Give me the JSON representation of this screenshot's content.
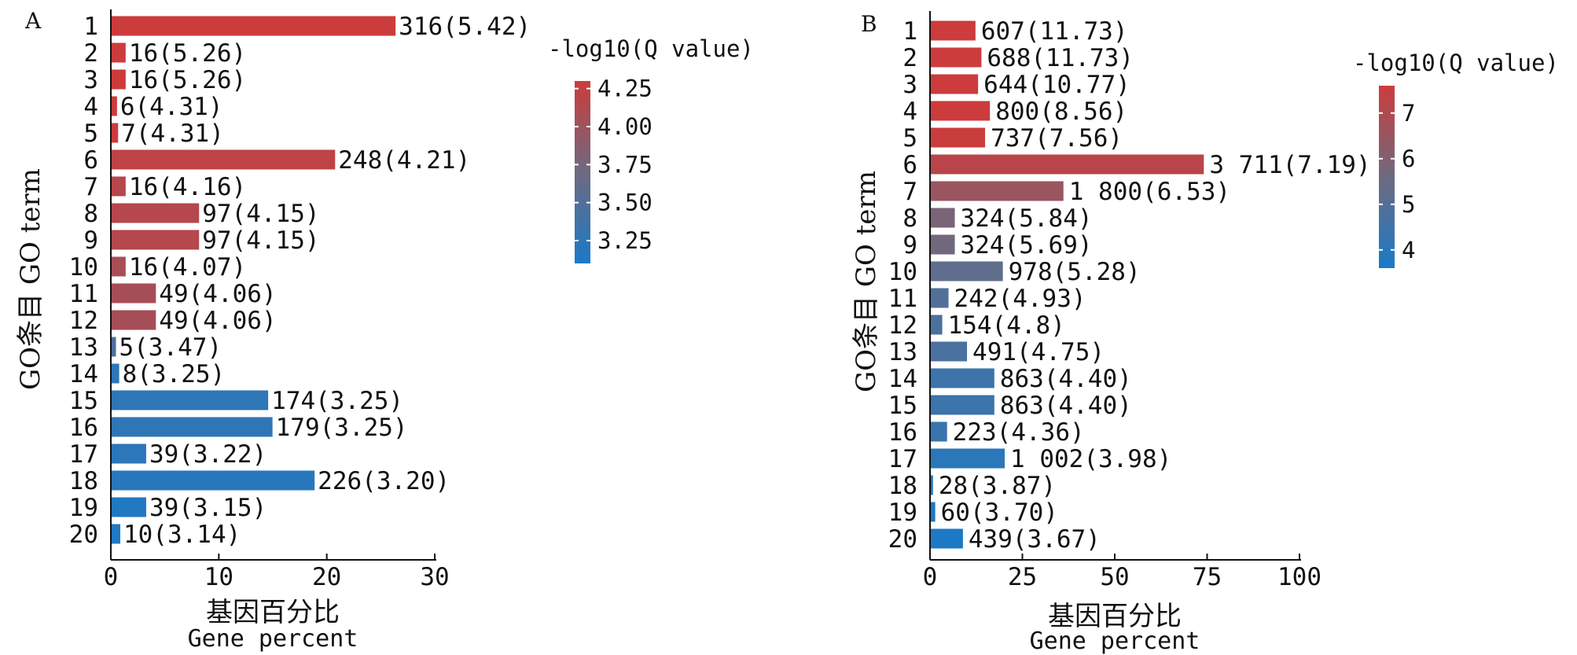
{
  "chart_data": [
    {
      "type": "bar",
      "orientation": "horizontal",
      "panel_label": "A",
      "xlabel": "基因百分比",
      "xlabel_en": "Gene percent",
      "ylabel": "GO条目 GO term",
      "xlim": [
        0,
        30
      ],
      "xticks": [
        0,
        10,
        20,
        30
      ],
      "grid": false,
      "colorbar": {
        "title": "-log10(Q value)",
        "min": 3.1,
        "max": 4.3,
        "ticks": [
          4.25,
          4.0,
          3.75,
          3.5,
          3.25
        ],
        "tick_labels": [
          "4.25",
          "4.00",
          "3.75",
          "3.50",
          "3.25"
        ],
        "low_color": "#1a7ac8",
        "mid_color": "#6e6a80",
        "high_color": "#cc3c3c"
      },
      "categories": [
        "1",
        "2",
        "3",
        "4",
        "5",
        "6",
        "7",
        "8",
        "9",
        "10",
        "11",
        "12",
        "13",
        "14",
        "15",
        "16",
        "17",
        "18",
        "19",
        "20"
      ],
      "values": [
        26.3,
        1.3,
        1.3,
        0.5,
        0.6,
        20.7,
        1.3,
        8.1,
        8.1,
        1.3,
        4.1,
        4.1,
        0.4,
        0.7,
        14.5,
        14.9,
        3.2,
        18.8,
        3.2,
        0.8
      ],
      "q_values": [
        5.42,
        5.26,
        5.26,
        4.31,
        4.31,
        4.21,
        4.16,
        4.15,
        4.15,
        4.07,
        4.06,
        4.06,
        3.47,
        3.25,
        3.25,
        3.25,
        3.22,
        3.2,
        3.15,
        3.14
      ],
      "labels": [
        "316(5.42)",
        "16(5.26)",
        "16(5.26)",
        "6(4.31)",
        "7(4.31)",
        "248(4.21)",
        "16(4.16)",
        "97(4.15)",
        "97(4.15)",
        "16(4.07)",
        "49(4.06)",
        "49(4.06)",
        "5(3.47)",
        "8(3.25)",
        "174(3.25)",
        "179(3.25)",
        "39(3.22)",
        "226(3.20)",
        "39(3.15)",
        "10(3.14)"
      ]
    },
    {
      "type": "bar",
      "orientation": "horizontal",
      "panel_label": "B",
      "xlabel": "基因百分比",
      "xlabel_en": "Gene percent",
      "ylabel": "GO条目 GO term",
      "xlim": [
        0,
        100
      ],
      "xticks": [
        0,
        25,
        50,
        75,
        100
      ],
      "grid": false,
      "colorbar": {
        "title": "-log10(Q value)",
        "min": 3.6,
        "max": 7.6,
        "ticks": [
          7,
          6,
          5,
          4
        ],
        "tick_labels": [
          "7",
          "6",
          "5",
          "4"
        ],
        "low_color": "#1a7ac8",
        "mid_color": "#6e6a80",
        "high_color": "#cc3c3c"
      },
      "categories": [
        "1",
        "2",
        "3",
        "4",
        "5",
        "6",
        "7",
        "8",
        "9",
        "10",
        "11",
        "12",
        "13",
        "14",
        "15",
        "16",
        "17",
        "18",
        "19",
        "20"
      ],
      "values": [
        12.1,
        13.7,
        12.8,
        16.0,
        14.7,
        73.9,
        35.9,
        6.5,
        6.5,
        19.5,
        4.8,
        3.1,
        9.8,
        17.2,
        17.2,
        4.4,
        20.0,
        0.6,
        1.2,
        8.7
      ],
      "q_values": [
        11.73,
        11.73,
        10.77,
        8.56,
        7.56,
        7.19,
        6.53,
        5.84,
        5.69,
        5.28,
        4.93,
        4.8,
        4.75,
        4.4,
        4.4,
        4.36,
        3.98,
        3.87,
        3.7,
        3.67
      ],
      "labels": [
        "607(11.73)",
        "688(11.73)",
        "644(10.77)",
        "800(8.56)",
        "737(7.56)",
        "3 711(7.19)",
        "1 800(6.53)",
        "324(5.84)",
        "324(5.69)",
        "978(5.28)",
        "242(4.93)",
        "154(4.8)",
        "491(4.75)",
        "863(4.40)",
        "863(4.40)",
        "223(4.36)",
        "1 002(3.98)",
        "28(3.87)",
        "60(3.70)",
        "439(3.67)"
      ]
    }
  ]
}
